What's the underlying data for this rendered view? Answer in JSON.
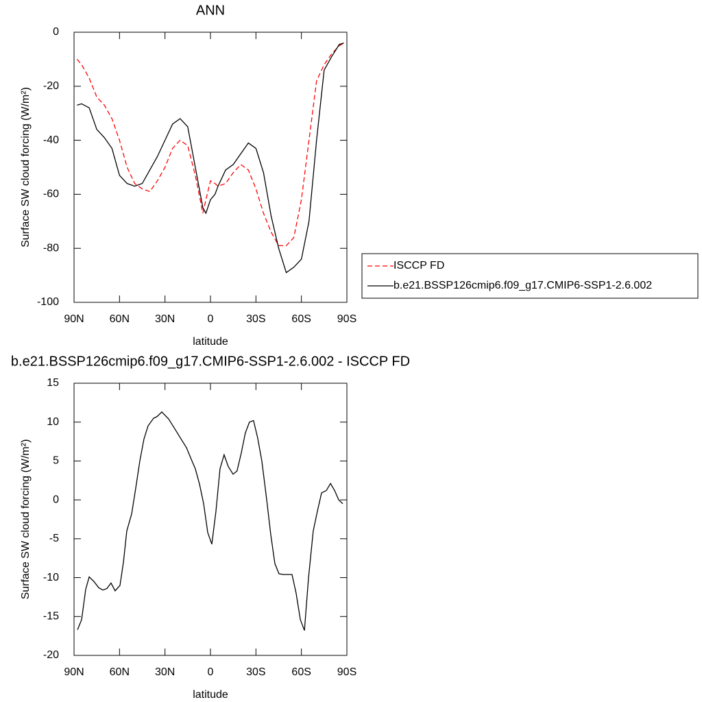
{
  "chart_data": [
    {
      "type": "line",
      "title": "ANN",
      "xlabel": "latitude",
      "ylabel": "Surface SW cloud forcing (W/m²)",
      "xlim": [
        90,
        -90
      ],
      "ylim": [
        -100,
        0
      ],
      "xticks": [
        {
          "value": 90,
          "label": "90N"
        },
        {
          "value": 60,
          "label": "60N"
        },
        {
          "value": 30,
          "label": "30N"
        },
        0,
        {
          "value": -30,
          "label": "30S"
        },
        {
          "value": -60,
          "label": "60S"
        },
        {
          "value": -90,
          "label": "90S"
        }
      ],
      "yticks": [
        0,
        -20,
        -40,
        -60,
        -80,
        -100
      ],
      "legend": "right",
      "x": [
        88,
        85,
        80,
        75,
        70,
        65,
        60,
        55,
        50,
        45,
        40,
        35,
        30,
        25,
        20,
        15,
        10,
        5,
        3,
        0,
        -3,
        -5,
        -10,
        -15,
        -20,
        -25,
        -30,
        -35,
        -40,
        -45,
        -50,
        -55,
        -60,
        -65,
        -70,
        -75,
        -80,
        -85,
        -88
      ],
      "series": [
        {
          "name": "ISCCP FD",
          "color": "#ff0000",
          "line_style": "dashed",
          "values": [
            -10,
            -12,
            -17,
            -24,
            -27,
            -32,
            -40,
            -50,
            -56,
            -58,
            -59,
            -55,
            -50,
            -43,
            -40,
            -42,
            -53,
            -67,
            -62,
            -55,
            -56,
            -57,
            -56,
            -52,
            -49,
            -51,
            -58,
            -67,
            -74,
            -79,
            -79,
            -76,
            -62,
            -40,
            -18,
            -12,
            -8,
            -5,
            -4
          ]
        },
        {
          "name": "b.e21.BSSP126cmip6.f09_g17.CMIP6-SSP1-2.6.002",
          "color": "#000000",
          "line_style": "solid",
          "values": [
            -27,
            -26.5,
            -28,
            -36,
            -39,
            -43,
            -53,
            -56,
            -57,
            -56,
            -51,
            -46,
            -40,
            -34,
            -32,
            -35,
            -50,
            -65,
            -67,
            -62,
            -60,
            -57,
            -51,
            -49,
            -45,
            -41,
            -43,
            -52,
            -68,
            -80,
            -89,
            -87,
            -84,
            -70,
            -40,
            -14,
            -9,
            -4.5,
            -4
          ]
        }
      ]
    },
    {
      "type": "line",
      "title": "b.e21.BSSP126cmip6.f09_g17.CMIP6-SSP1-2.6.002 - ISCCP FD",
      "xlabel": "latitude",
      "ylabel": "Surface SW cloud forcing (W/m²)",
      "xlim": [
        90,
        -90
      ],
      "ylim": [
        -20,
        15
      ],
      "xticks": [
        {
          "value": 90,
          "label": "90N"
        },
        {
          "value": 60,
          "label": "60N"
        },
        {
          "value": 30,
          "label": "30N"
        },
        0,
        {
          "value": -30,
          "label": "30S"
        },
        {
          "value": -60,
          "label": "60S"
        },
        {
          "value": -90,
          "label": "90S"
        }
      ],
      "yticks": [
        15,
        10,
        5,
        0,
        -5,
        -10,
        -15,
        -20
      ],
      "x": [
        87.7,
        85,
        82.3,
        80,
        76.9,
        73.7,
        71,
        68.3,
        65.6,
        62.9,
        59.7,
        57.4,
        55.2,
        52,
        49.3,
        46.6,
        43.9,
        41.2,
        37.5,
        35.3,
        32.1,
        27.6,
        23.1,
        19,
        15.8,
        12.2,
        10,
        7.2,
        4.5,
        1.8,
        -0.9,
        -3.6,
        -6.3,
        -9,
        -11.7,
        -14.9,
        -17.5,
        -20.3,
        -23,
        -25.7,
        -28.4,
        -31.1,
        -33.9,
        -37.1,
        -39.8,
        -42.5,
        -45.2,
        -47.9,
        -51.1,
        -53.8,
        -56.5,
        -59.3,
        -62,
        -64.7,
        -67.8,
        -70.5,
        -73.3,
        -76.4,
        -79.2,
        -81.9,
        -84.6,
        -87.3
      ],
      "series": [
        {
          "color": "#000000",
          "line_style": "solid",
          "values": [
            -16.7,
            -15.4,
            -11.5,
            -9.9,
            -10.5,
            -11.3,
            -11.6,
            -11.4,
            -10.7,
            -11.7,
            -11,
            -8,
            -4,
            -1.8,
            1.5,
            5,
            7.8,
            9.5,
            10.5,
            10.7,
            11.3,
            10.4,
            9,
            7.7,
            6.7,
            5,
            4,
            2,
            -0.5,
            -4.2,
            -5.7,
            -1.5,
            4,
            5.8,
            4.3,
            3.3,
            3.7,
            6,
            8.6,
            10,
            10.2,
            8,
            5,
            0,
            -4.5,
            -8.2,
            -9.5,
            -9.6,
            -9.6,
            -9.6,
            -12,
            -15.4,
            -16.8,
            -10,
            -4,
            -1.5,
            0.9,
            1.2,
            2.1,
            1.2,
            0,
            -0.5
          ]
        }
      ]
    }
  ]
}
